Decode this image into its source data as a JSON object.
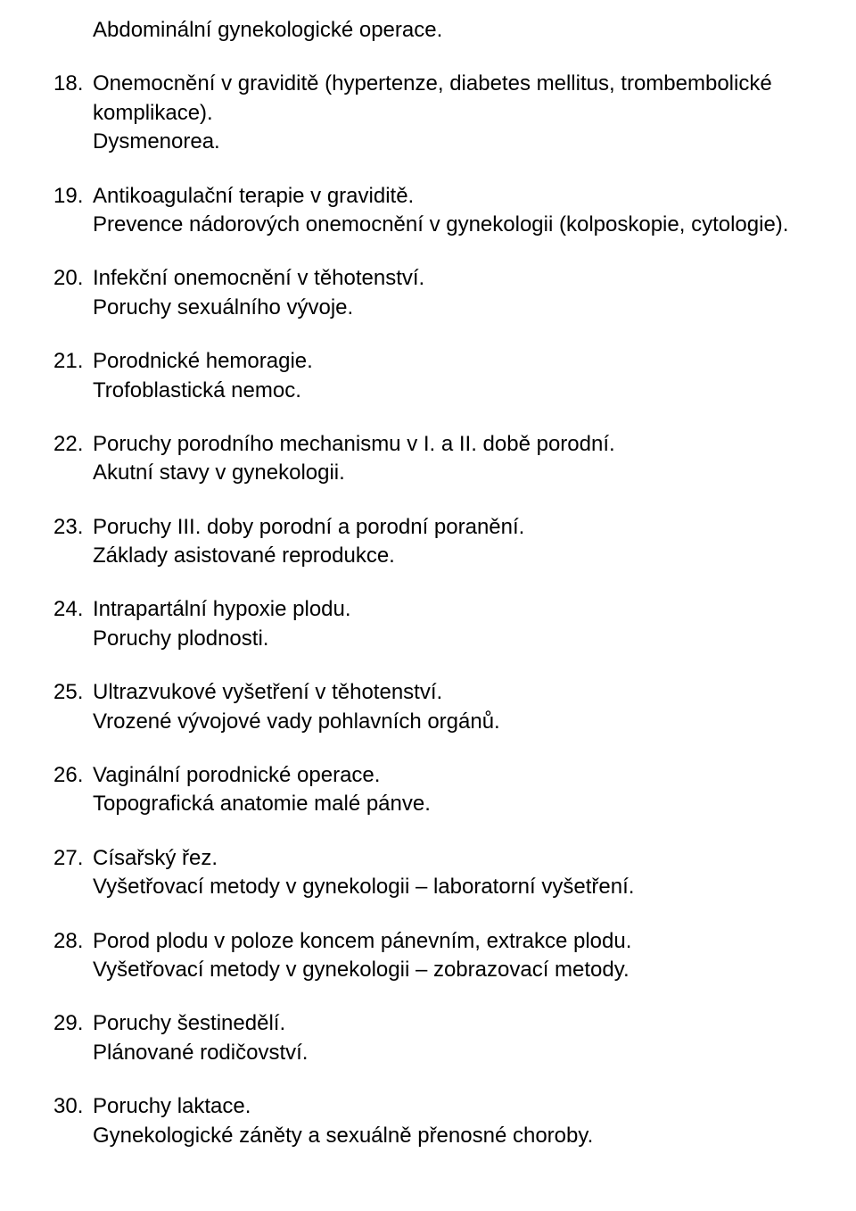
{
  "typography": {
    "font_family": "Trebuchet MS",
    "font_size_pt": 18,
    "text_color": "#000000",
    "background_color": "#ffffff"
  },
  "orphan_line": "Abdominální gynekologické operace.",
  "items": [
    {
      "n": "18.",
      "lines": [
        "Onemocnění v graviditě (hypertenze, diabetes mellitus, trombembolické komplikace).",
        "Dysmenorea."
      ]
    },
    {
      "n": "19.",
      "lines": [
        "Antikoagulační terapie v graviditě.",
        "Prevence nádorových onemocnění v gynekologii (kolposkopie, cytologie)."
      ]
    },
    {
      "n": "20.",
      "lines": [
        "Infekční onemocnění v těhotenství.",
        "Poruchy sexuálního vývoje."
      ]
    },
    {
      "n": "21.",
      "lines": [
        "Porodnické hemoragie.",
        "Trofoblastická nemoc."
      ]
    },
    {
      "n": "22.",
      "lines": [
        "Poruchy porodního mechanismu v I. a II. době porodní.",
        "Akutní stavy v gynekologii."
      ]
    },
    {
      "n": "23.",
      "lines": [
        "Poruchy III. doby porodní a porodní poranění.",
        "Základy asistované reprodukce."
      ]
    },
    {
      "n": "24.",
      "lines": [
        "Intrapartální hypoxie plodu.",
        "Poruchy plodnosti."
      ]
    },
    {
      "n": "25.",
      "lines": [
        "Ultrazvukové vyšetření v těhotenství.",
        "Vrozené vývojové vady pohlavních orgánů."
      ]
    },
    {
      "n": "26.",
      "lines": [
        "Vaginální porodnické operace.",
        "Topografická anatomie malé pánve."
      ]
    },
    {
      "n": "27.",
      "lines": [
        "Císařský řez.",
        "Vyšetřovací metody v gynekologii – laboratorní vyšetření."
      ]
    },
    {
      "n": "28.",
      "lines": [
        "Porod plodu v poloze koncem pánevním, extrakce plodu.",
        "Vyšetřovací metody v gynekologii – zobrazovací metody."
      ]
    },
    {
      "n": "29.",
      "lines": [
        "Poruchy šestinedělí.",
        "Plánované rodičovství."
      ]
    },
    {
      "n": "30.",
      "lines": [
        "Poruchy laktace.",
        "Gynekologické záněty a sexuálně přenosné choroby."
      ]
    }
  ]
}
